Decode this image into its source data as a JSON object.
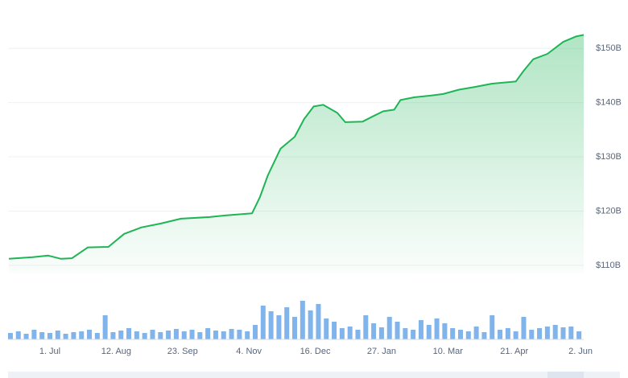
{
  "chart_data": [
    {
      "type": "area",
      "x": [
        -26,
        -11,
        -1,
        7,
        14,
        24,
        37,
        47,
        58,
        70,
        83,
        101,
        111,
        128,
        133,
        138,
        146,
        155,
        161,
        167,
        173,
        182,
        187,
        198,
        204,
        211,
        218,
        222,
        231,
        241,
        249,
        259,
        269,
        280,
        295,
        300,
        306,
        315,
        325,
        333,
        338
      ],
      "values": [
        111.2,
        111.5,
        111.8,
        111.2,
        111.3,
        113.3,
        113.4,
        115.8,
        117.0,
        117.7,
        118.6,
        118.9,
        119.2,
        119.6,
        122.6,
        126.6,
        131.5,
        133.7,
        137.0,
        139.3,
        139.6,
        138.1,
        136.4,
        136.5,
        137.4,
        138.4,
        138.7,
        140.5,
        141.0,
        141.3,
        141.6,
        142.4,
        142.9,
        143.5,
        143.9,
        145.9,
        148.0,
        149.0,
        151.2,
        152.2,
        152.5
      ],
      "color": "#1fb456",
      "xlim": [
        -26.5,
        338
      ],
      "ylim": [
        108.5,
        153
      ],
      "yticks": [
        {
          "value": 110,
          "label": "$110B"
        },
        {
          "value": 120,
          "label": "$120B"
        },
        {
          "value": 130,
          "label": "$130B"
        },
        {
          "value": 140,
          "label": "$140B"
        },
        {
          "value": 150,
          "label": "$150B"
        }
      ],
      "grid": true
    },
    {
      "type": "bar",
      "x": [
        -25,
        -20,
        -15,
        -10,
        -5,
        0,
        5,
        10,
        15,
        20,
        25,
        30,
        35,
        40,
        45,
        50,
        55,
        60,
        65,
        70,
        75,
        80,
        85,
        90,
        95,
        100,
        105,
        110,
        115,
        120,
        125,
        130,
        135,
        140,
        145,
        150,
        155,
        160,
        165,
        170,
        175,
        180,
        185,
        190,
        195,
        200,
        205,
        210,
        215,
        220,
        225,
        230,
        235,
        240,
        245,
        250,
        255,
        260,
        265,
        270,
        275,
        280,
        285,
        290,
        295,
        300,
        305,
        310,
        315,
        320,
        325,
        330,
        335
      ],
      "values": [
        8,
        10,
        7,
        12,
        9,
        8,
        11,
        7,
        9,
        10,
        12,
        8,
        30,
        9,
        11,
        14,
        10,
        8,
        12,
        9,
        11,
        13,
        10,
        12,
        9,
        14,
        11,
        10,
        13,
        12,
        10,
        18,
        42,
        35,
        30,
        40,
        28,
        48,
        36,
        44,
        26,
        22,
        14,
        16,
        12,
        30,
        20,
        15,
        28,
        22,
        14,
        12,
        24,
        18,
        26,
        20,
        14,
        12,
        10,
        16,
        9,
        30,
        12,
        14,
        10,
        28,
        12,
        14,
        16,
        18,
        15,
        16,
        10
      ],
      "color": "#80b4ea",
      "xlim": [
        -26.5,
        338
      ],
      "xticks": [
        {
          "value": 0,
          "label": "1. Jul"
        },
        {
          "value": 42,
          "label": "12. Aug"
        },
        {
          "value": 84,
          "label": "23. Sep"
        },
        {
          "value": 126,
          "label": "4. Nov"
        },
        {
          "value": 168,
          "label": "16. Dec"
        },
        {
          "value": 210,
          "label": "27. Jan"
        },
        {
          "value": 252,
          "label": "10. Mar"
        },
        {
          "value": 294,
          "label": "21. Apr"
        },
        {
          "value": 336,
          "label": "2. Jun"
        }
      ]
    }
  ]
}
